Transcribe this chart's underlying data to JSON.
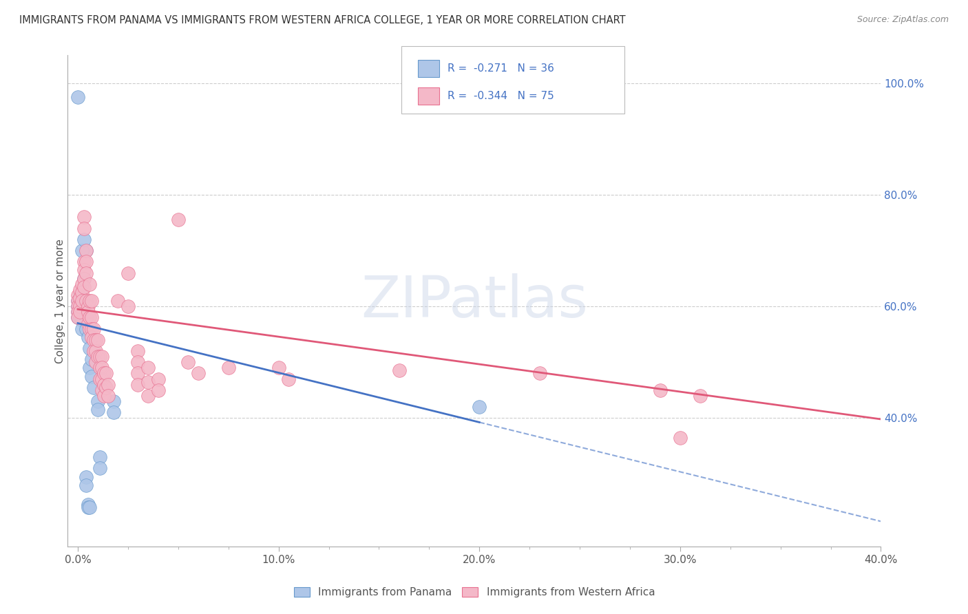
{
  "title": "IMMIGRANTS FROM PANAMA VS IMMIGRANTS FROM WESTERN AFRICA COLLEGE, 1 YEAR OR MORE CORRELATION CHART",
  "source": "Source: ZipAtlas.com",
  "ylabel_left": "College, 1 year or more",
  "ylabel_right_labels": [
    "100.0%",
    "80.0%",
    "60.0%",
    "40.0%"
  ],
  "ylabel_right_values": [
    1.0,
    0.8,
    0.6,
    0.4
  ],
  "x_tick_labels": [
    "0.0%",
    "",
    "",
    "",
    "10.0%",
    "",
    "",
    "",
    "20.0%",
    "",
    "",
    "",
    "30.0%",
    "",
    "",
    "",
    "40.0%"
  ],
  "x_tick_values": [
    0.0,
    0.025,
    0.05,
    0.075,
    0.1,
    0.125,
    0.15,
    0.175,
    0.2,
    0.225,
    0.25,
    0.275,
    0.3,
    0.325,
    0.35,
    0.375,
    0.4
  ],
  "xlim": [
    -0.005,
    0.4
  ],
  "ylim": [
    0.17,
    1.05
  ],
  "legend_label1": "Immigrants from Panama",
  "legend_label2": "Immigrants from Western Africa",
  "panama_color": "#aec6e8",
  "wa_color": "#f4b8c8",
  "panama_edge_color": "#6699cc",
  "wa_edge_color": "#e87090",
  "panama_line_color": "#4472c4",
  "wa_line_color": "#e05878",
  "watermark_text": "ZIPatlas",
  "grid_color": "#cccccc",
  "panama_dots": [
    [
      0.0,
      0.975
    ],
    [
      0.004,
      0.7
    ],
    [
      0.002,
      0.7
    ],
    [
      0.003,
      0.65
    ],
    [
      0.003,
      0.72
    ],
    [
      0.001,
      0.62
    ],
    [
      0.001,
      0.61
    ],
    [
      0.002,
      0.6
    ],
    [
      0.0,
      0.61
    ],
    [
      0.0,
      0.6
    ],
    [
      0.0,
      0.59
    ],
    [
      0.0,
      0.58
    ],
    [
      0.001,
      0.58
    ],
    [
      0.002,
      0.575
    ],
    [
      0.002,
      0.56
    ],
    [
      0.003,
      0.6
    ],
    [
      0.004,
      0.56
    ],
    [
      0.004,
      0.58
    ],
    [
      0.005,
      0.545
    ],
    [
      0.006,
      0.525
    ],
    [
      0.006,
      0.49
    ],
    [
      0.007,
      0.505
    ],
    [
      0.007,
      0.475
    ],
    [
      0.008,
      0.455
    ],
    [
      0.01,
      0.43
    ],
    [
      0.01,
      0.415
    ],
    [
      0.011,
      0.33
    ],
    [
      0.011,
      0.31
    ],
    [
      0.018,
      0.43
    ],
    [
      0.018,
      0.41
    ],
    [
      0.004,
      0.295
    ],
    [
      0.004,
      0.28
    ],
    [
      0.005,
      0.245
    ],
    [
      0.005,
      0.24
    ],
    [
      0.006,
      0.24
    ],
    [
      0.2,
      0.42
    ]
  ],
  "wa_dots": [
    [
      0.0,
      0.62
    ],
    [
      0.0,
      0.61
    ],
    [
      0.0,
      0.6
    ],
    [
      0.0,
      0.59
    ],
    [
      0.0,
      0.58
    ],
    [
      0.001,
      0.63
    ],
    [
      0.001,
      0.615
    ],
    [
      0.001,
      0.6
    ],
    [
      0.001,
      0.59
    ],
    [
      0.002,
      0.64
    ],
    [
      0.002,
      0.625
    ],
    [
      0.002,
      0.61
    ],
    [
      0.003,
      0.76
    ],
    [
      0.003,
      0.74
    ],
    [
      0.003,
      0.68
    ],
    [
      0.003,
      0.665
    ],
    [
      0.003,
      0.65
    ],
    [
      0.003,
      0.635
    ],
    [
      0.004,
      0.7
    ],
    [
      0.004,
      0.68
    ],
    [
      0.004,
      0.66
    ],
    [
      0.004,
      0.61
    ],
    [
      0.005,
      0.6
    ],
    [
      0.005,
      0.59
    ],
    [
      0.005,
      0.57
    ],
    [
      0.006,
      0.64
    ],
    [
      0.006,
      0.61
    ],
    [
      0.006,
      0.58
    ],
    [
      0.006,
      0.56
    ],
    [
      0.007,
      0.61
    ],
    [
      0.007,
      0.58
    ],
    [
      0.007,
      0.56
    ],
    [
      0.007,
      0.545
    ],
    [
      0.008,
      0.56
    ],
    [
      0.008,
      0.54
    ],
    [
      0.008,
      0.52
    ],
    [
      0.009,
      0.54
    ],
    [
      0.009,
      0.52
    ],
    [
      0.009,
      0.5
    ],
    [
      0.01,
      0.54
    ],
    [
      0.01,
      0.51
    ],
    [
      0.011,
      0.51
    ],
    [
      0.011,
      0.49
    ],
    [
      0.011,
      0.47
    ],
    [
      0.012,
      0.51
    ],
    [
      0.012,
      0.49
    ],
    [
      0.012,
      0.47
    ],
    [
      0.012,
      0.45
    ],
    [
      0.013,
      0.48
    ],
    [
      0.013,
      0.46
    ],
    [
      0.013,
      0.44
    ],
    [
      0.014,
      0.48
    ],
    [
      0.014,
      0.455
    ],
    [
      0.015,
      0.46
    ],
    [
      0.015,
      0.44
    ],
    [
      0.02,
      0.61
    ],
    [
      0.025,
      0.6
    ],
    [
      0.025,
      0.66
    ],
    [
      0.03,
      0.52
    ],
    [
      0.03,
      0.5
    ],
    [
      0.03,
      0.48
    ],
    [
      0.03,
      0.46
    ],
    [
      0.035,
      0.49
    ],
    [
      0.035,
      0.465
    ],
    [
      0.035,
      0.44
    ],
    [
      0.04,
      0.47
    ],
    [
      0.04,
      0.45
    ],
    [
      0.05,
      0.755
    ],
    [
      0.055,
      0.5
    ],
    [
      0.06,
      0.48
    ],
    [
      0.075,
      0.49
    ],
    [
      0.1,
      0.49
    ],
    [
      0.105,
      0.47
    ],
    [
      0.16,
      0.485
    ],
    [
      0.23,
      0.48
    ],
    [
      0.29,
      0.45
    ],
    [
      0.3,
      0.365
    ],
    [
      0.31,
      0.44
    ]
  ],
  "panama_line_x0": 0.0,
  "panama_line_y0": 0.57,
  "panama_line_x1": 0.4,
  "panama_line_y1": 0.215,
  "wa_line_x0": 0.0,
  "wa_line_y0": 0.595,
  "wa_line_x1": 0.4,
  "wa_line_y1": 0.398
}
